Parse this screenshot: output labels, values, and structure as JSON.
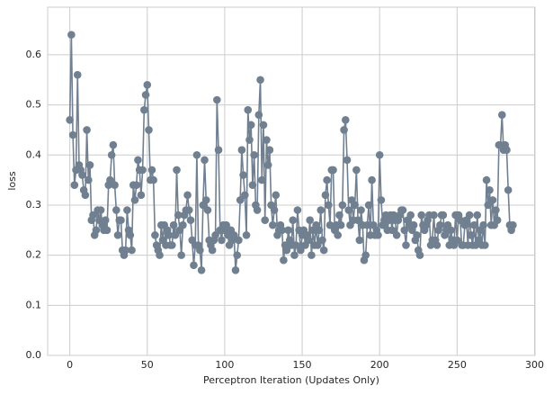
{
  "chart_data": {
    "type": "line",
    "xlabel": "Perceptron Iteration (Updates Only)",
    "ylabel": "loss",
    "x": [
      0,
      1,
      2,
      3,
      4,
      5,
      6,
      7,
      8,
      9,
      10,
      11,
      12,
      13,
      14,
      15,
      16,
      17,
      18,
      19,
      20,
      21,
      22,
      23,
      24,
      25,
      26,
      27,
      28,
      29,
      30,
      31,
      32,
      33,
      34,
      35,
      36,
      37,
      38,
      39,
      40,
      41,
      42,
      43,
      44,
      45,
      46,
      47,
      48,
      49,
      50,
      51,
      52,
      53,
      54,
      55,
      56,
      57,
      58,
      59,
      60,
      61,
      62,
      63,
      64,
      65,
      66,
      67,
      68,
      69,
      70,
      71,
      72,
      73,
      74,
      75,
      76,
      77,
      78,
      79,
      80,
      81,
      82,
      83,
      84,
      85,
      86,
      87,
      88,
      89,
      90,
      91,
      92,
      93,
      94,
      95,
      96,
      97,
      98,
      99,
      100,
      101,
      102,
      103,
      104,
      105,
      106,
      107,
      108,
      109,
      110,
      111,
      112,
      113,
      114,
      115,
      116,
      117,
      118,
      119,
      120,
      121,
      122,
      123,
      124,
      125,
      126,
      127,
      128,
      129,
      130,
      131,
      132,
      133,
      134,
      135,
      136,
      137,
      138,
      139,
      140,
      141,
      142,
      143,
      144,
      145,
      146,
      147,
      148,
      149,
      150,
      151,
      152,
      153,
      154,
      155,
      156,
      157,
      158,
      159,
      160,
      161,
      162,
      163,
      164,
      165,
      166,
      167,
      168,
      169,
      170,
      171,
      172,
      173,
      174,
      175,
      176,
      177,
      178,
      179,
      180,
      181,
      182,
      183,
      184,
      185,
      186,
      187,
      188,
      189,
      190,
      191,
      192,
      193,
      194,
      195,
      196,
      197,
      198,
      199,
      200,
      201,
      202,
      203,
      204,
      205,
      206,
      207,
      208,
      209,
      210,
      211,
      212,
      213,
      214,
      215,
      216,
      217,
      218,
      219,
      220,
      221,
      222,
      223,
      224,
      225,
      226,
      227,
      228,
      229,
      230,
      231,
      232,
      233,
      234,
      235,
      236,
      237,
      238,
      239,
      240,
      241,
      242,
      243,
      244,
      245,
      246,
      247,
      248,
      249,
      250,
      251,
      252,
      253,
      254,
      255,
      256,
      257,
      258,
      259,
      260,
      261,
      262,
      263,
      264,
      265,
      266,
      267,
      268,
      269,
      270,
      271,
      272,
      273,
      274,
      275,
      276,
      277,
      278,
      279,
      280,
      281,
      282,
      283,
      284,
      285,
      286
    ],
    "series": [
      {
        "name": "loss",
        "color": "#708090",
        "values": [
          0.47,
          0.64,
          0.44,
          0.34,
          0.37,
          0.56,
          0.38,
          0.37,
          0.36,
          0.33,
          0.32,
          0.45,
          0.35,
          0.38,
          0.27,
          0.28,
          0.24,
          0.25,
          0.29,
          0.27,
          0.29,
          0.26,
          0.25,
          0.27,
          0.25,
          0.34,
          0.35,
          0.4,
          0.42,
          0.34,
          0.29,
          0.24,
          0.27,
          0.27,
          0.21,
          0.2,
          0.21,
          0.29,
          0.25,
          0.24,
          0.21,
          0.34,
          0.31,
          0.34,
          0.39,
          0.37,
          0.32,
          0.37,
          0.49,
          0.52,
          0.54,
          0.45,
          0.35,
          0.37,
          0.35,
          0.24,
          0.22,
          0.21,
          0.2,
          0.26,
          0.23,
          0.26,
          0.22,
          0.25,
          0.24,
          0.22,
          0.22,
          0.26,
          0.24,
          0.37,
          0.28,
          0.25,
          0.2,
          0.26,
          0.28,
          0.29,
          0.32,
          0.29,
          0.27,
          0.23,
          0.18,
          0.22,
          0.4,
          0.22,
          0.21,
          0.17,
          0.3,
          0.39,
          0.31,
          0.29,
          0.23,
          0.22,
          0.21,
          0.23,
          0.24,
          0.51,
          0.41,
          0.25,
          0.23,
          0.26,
          0.25,
          0.26,
          0.24,
          0.22,
          0.25,
          0.23,
          0.24,
          0.17,
          0.2,
          0.23,
          0.31,
          0.41,
          0.36,
          0.32,
          0.24,
          0.49,
          0.43,
          0.46,
          0.34,
          0.4,
          0.3,
          0.29,
          0.48,
          0.55,
          0.35,
          0.46,
          0.27,
          0.43,
          0.38,
          0.41,
          0.3,
          0.26,
          0.29,
          0.32,
          0.24,
          0.25,
          0.26,
          0.25,
          0.19,
          0.22,
          0.21,
          0.25,
          0.23,
          0.22,
          0.27,
          0.2,
          0.22,
          0.29,
          0.25,
          0.21,
          0.24,
          0.25,
          0.22,
          0.24,
          0.23,
          0.27,
          0.2,
          0.25,
          0.22,
          0.26,
          0.22,
          0.25,
          0.29,
          0.23,
          0.21,
          0.32,
          0.35,
          0.3,
          0.26,
          0.37,
          0.37,
          0.25,
          0.26,
          0.24,
          0.28,
          0.26,
          0.3,
          0.45,
          0.47,
          0.39,
          0.29,
          0.26,
          0.31,
          0.27,
          0.3,
          0.37,
          0.27,
          0.23,
          0.29,
          0.26,
          0.19,
          0.2,
          0.26,
          0.3,
          0.24,
          0.35,
          0.26,
          0.24,
          0.25,
          0.24,
          0.4,
          0.31,
          0.26,
          0.27,
          0.28,
          0.25,
          0.27,
          0.28,
          0.25,
          0.28,
          0.27,
          0.24,
          0.27,
          0.28,
          0.29,
          0.29,
          0.25,
          0.22,
          0.27,
          0.26,
          0.28,
          0.25,
          0.26,
          0.23,
          0.24,
          0.21,
          0.2,
          0.28,
          0.26,
          0.25,
          0.26,
          0.27,
          0.28,
          0.22,
          0.23,
          0.28,
          0.23,
          0.22,
          0.25,
          0.26,
          0.28,
          0.28,
          0.24,
          0.25,
          0.26,
          0.22,
          0.25,
          0.23,
          0.22,
          0.28,
          0.23,
          0.28,
          0.27,
          0.22,
          0.22,
          0.26,
          0.27,
          0.22,
          0.28,
          0.24,
          0.22,
          0.26,
          0.22,
          0.28,
          0.23,
          0.25,
          0.22,
          0.26,
          0.22,
          0.35,
          0.3,
          0.33,
          0.26,
          0.31,
          0.26,
          0.29,
          0.27,
          0.42,
          0.42,
          0.48,
          0.41,
          0.42,
          0.41,
          0.33,
          0.26,
          0.25,
          0.26
        ]
      }
    ],
    "xlim": [
      -14.3,
      300.3
    ],
    "xticks": [
      0,
      50,
      100,
      150,
      200,
      250,
      300
    ],
    "ylim": [
      0,
      0.695
    ],
    "yticks": [
      {
        "value": 0,
        "label": "0.0"
      },
      0.1,
      0.2,
      0.3,
      0.4,
      0.5,
      0.6
    ],
    "grid": true
  }
}
